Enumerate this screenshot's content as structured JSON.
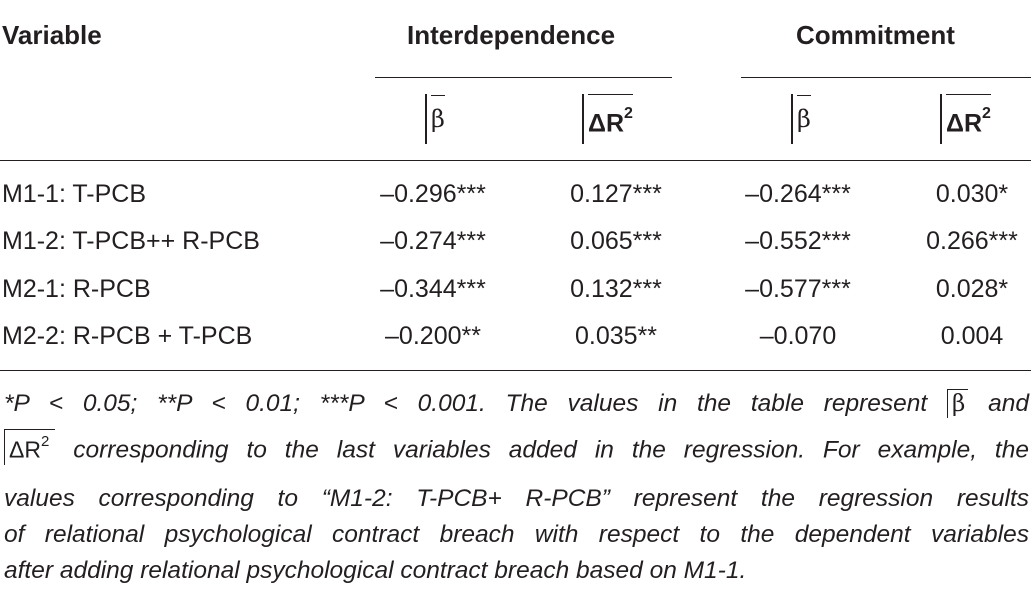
{
  "header": {
    "variable": "Variable",
    "group1": "Interdependence",
    "group2": "Commitment",
    "beta_symbol": "β",
    "delta_symbol": "ΔR",
    "delta_sup": "2"
  },
  "rows": [
    {
      "label": "M1-1: T-PCB",
      "i_beta": "–0.296***",
      "i_dr2": "0.127***",
      "c_beta": "–0.264***",
      "c_dr2": "0.030*"
    },
    {
      "label": "M1-2: T-PCB++ R-PCB",
      "i_beta": "–0.274***",
      "i_dr2": "0.065***",
      "c_beta": "–0.552***",
      "c_dr2": "0.266***"
    },
    {
      "label": "M2-1: R-PCB",
      "i_beta": "–0.344***",
      "i_dr2": "0.132***",
      "c_beta": "–0.577***",
      "c_dr2": "0.028*"
    },
    {
      "label": "M2-2: R-PCB + T-PCB",
      "i_beta": "–0.200**",
      "i_dr2": "0.035**",
      "c_beta": "–0.070",
      "c_dr2": "0.004"
    }
  ],
  "note": {
    "line1_a": "*P < 0.05; **P < 0.01; ***P < 0.001. The values in the table represent",
    "line1_sym": "β",
    "line1_b": "and",
    "line2_sym": "ΔR",
    "line2_sup": "2",
    "line2_b": "corresponding to the last variables added in the regression. For example, the",
    "line3": "values corresponding to “M1-2: T-PCB+ R-PCB” represent the regression results",
    "line4": "of relational psychological contract breach with respect to the dependent variables",
    "line5": "after adding relational psychological contract breach based on M1-1."
  }
}
